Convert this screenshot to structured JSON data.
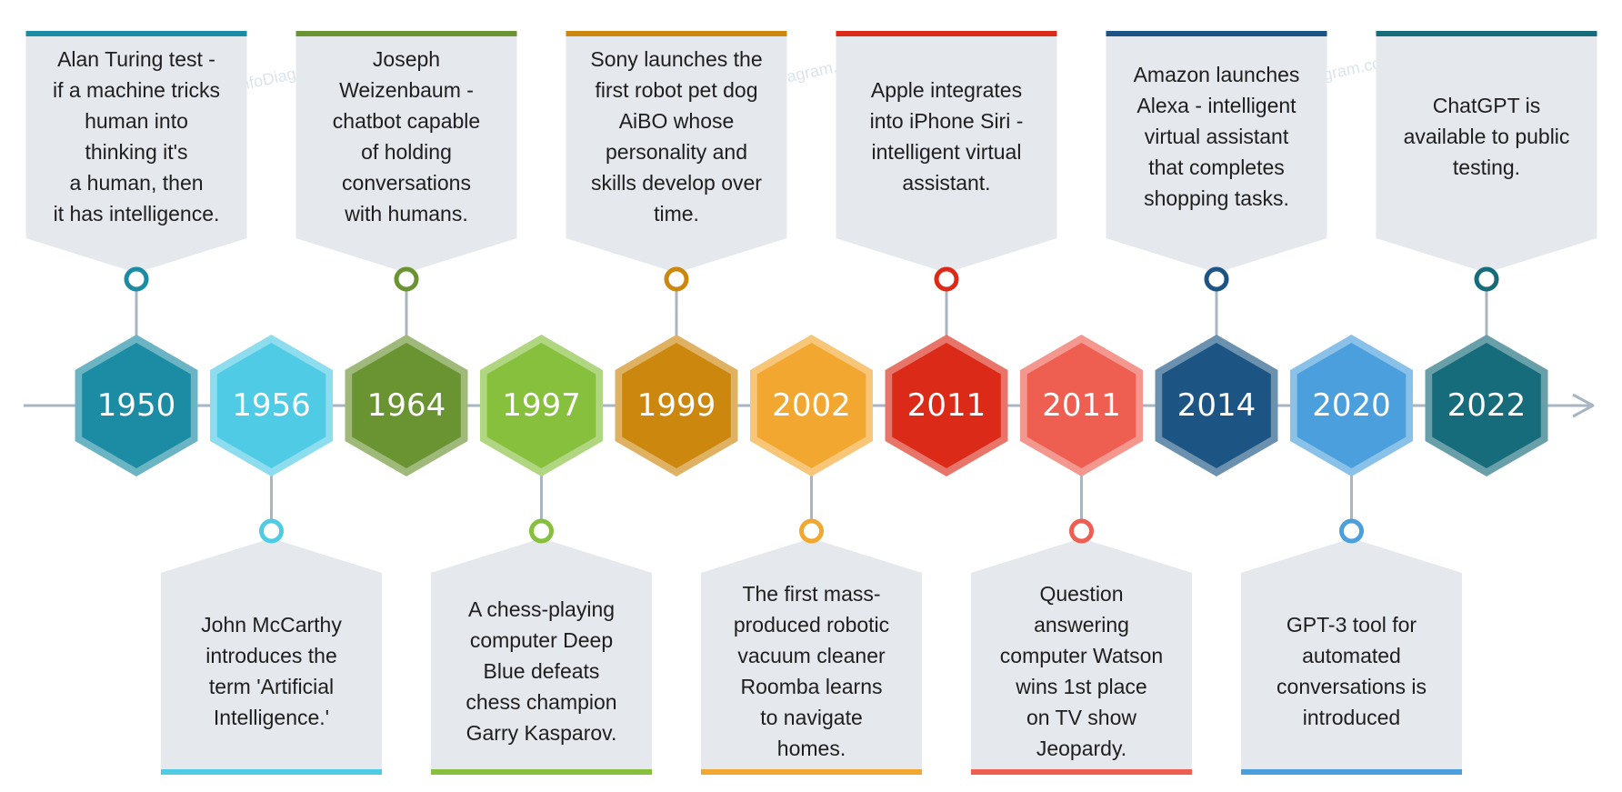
{
  "watermark": "© InfoDiagram.com",
  "milestones": [
    {
      "year": "1950",
      "text": "Alan Turing test -\nif a machine tricks\nhuman into\nthinking it's\na human, then\nit has intelligence.",
      "position": "top",
      "color": "#1b8ca3",
      "icon": "ring-marker-icon"
    },
    {
      "year": "1956",
      "text": "John McCarthy\nintroduces the\nterm 'Artificial\nIntelligence.'",
      "position": "bottom",
      "color": "#4fcbe6",
      "icon": "ring-marker-icon"
    },
    {
      "year": "1964",
      "text": "Joseph\nWeizenbaum -\nchatbot capable\nof holding\nconversations\nwith humans.",
      "position": "top",
      "color": "#6a9431",
      "icon": "ring-marker-icon"
    },
    {
      "year": "1997",
      "text": "A chess-playing\ncomputer Deep\nBlue defeats\nchess champion\nGarry Kasparov.",
      "position": "bottom",
      "color": "#86c03d",
      "icon": "ring-marker-icon"
    },
    {
      "year": "1999",
      "text": "Sony launches the\nfirst robot pet dog\nAiBO whose\npersonality and\nskills develop over\ntime.",
      "position": "top",
      "color": "#cc870f",
      "icon": "ring-marker-icon"
    },
    {
      "year": "2002",
      "text": "The first mass-\nproduced robotic\nvacuum cleaner\nRoomba learns\nto navigate\nhomes.",
      "position": "bottom",
      "color": "#f2a830",
      "icon": "ring-marker-icon"
    },
    {
      "year": "2011",
      "text": "Apple integrates\ninto iPhone Siri -\nintelligent  virtual\nassistant.",
      "position": "top",
      "color": "#dc2a19",
      "icon": "ring-marker-icon"
    },
    {
      "year": "2011",
      "text": "Question\nanswering\ncomputer Watson\nwins 1st place\non TV show\nJeopardy.",
      "position": "bottom",
      "color": "#ee5f52",
      "icon": "ring-marker-icon"
    },
    {
      "year": "2014",
      "text": "Amazon launches\nAlexa - intelligent\nvirtual assistant\nthat completes\nshopping tasks.",
      "position": "top",
      "color": "#1c5584",
      "icon": "ring-marker-icon"
    },
    {
      "year": "2020",
      "text": "GPT-3 tool for\nautomated\nconversations is\nintroduced",
      "position": "bottom",
      "color": "#4a9fdc",
      "icon": "ring-marker-icon"
    },
    {
      "year": "2022",
      "text": "ChatGPT is\navailable to public\ntesting.",
      "position": "top",
      "color": "#166c7a",
      "icon": "ring-marker-icon"
    }
  ],
  "colors": {
    "axis": "#a9b6c1",
    "box": "#e5e8ec",
    "connector": "#a9b6c1"
  }
}
